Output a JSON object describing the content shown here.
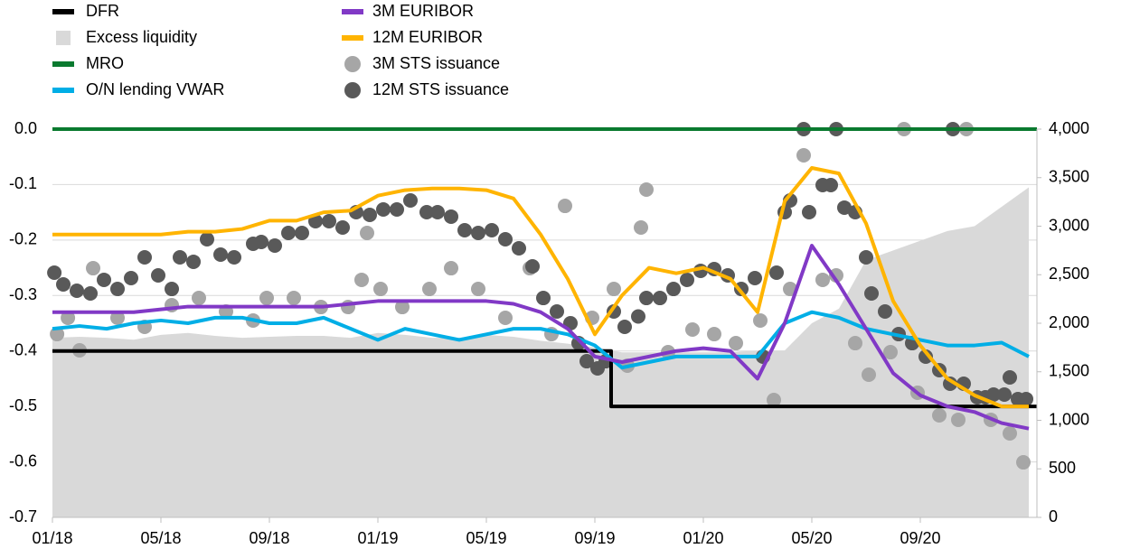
{
  "chart_data": {
    "type": "combo",
    "xlim": [
      0,
      36.3
    ],
    "xticks": [
      {
        "value": 0,
        "label": "01/18"
      },
      {
        "value": 4,
        "label": "05/18"
      },
      {
        "value": 8,
        "label": "09/18"
      },
      {
        "value": 12,
        "label": "01/19"
      },
      {
        "value": 16,
        "label": "05/19"
      },
      {
        "value": 20,
        "label": "09/19"
      },
      {
        "value": 24,
        "label": "01/20"
      },
      {
        "value": 28,
        "label": "05/20"
      },
      {
        "value": 32,
        "label": "09/20"
      }
    ],
    "ylim": [
      -0.7,
      0
    ],
    "yticks": [
      {
        "value": 0,
        "label": "0.0"
      },
      -0.1,
      -0.2,
      -0.3,
      -0.4,
      -0.5,
      -0.6,
      -0.7
    ],
    "y2lim": [
      0,
      4000
    ],
    "y2ticks": [
      {
        "value": 4000,
        "label": "4,000"
      },
      {
        "value": 3500,
        "label": "3,500"
      },
      {
        "value": 3000,
        "label": "3,000"
      },
      {
        "value": 2500,
        "label": "2,500"
      },
      {
        "value": 2000,
        "label": "2,000"
      },
      {
        "value": 1500,
        "label": "1,500"
      },
      {
        "value": 1000,
        "label": "1,000"
      },
      500,
      0
    ],
    "grid": true,
    "series": [
      {
        "name": "DFR",
        "type": "line",
        "color": "#000000",
        "x": [
          0,
          20.6,
          20.6,
          36.3
        ],
        "values": [
          -0.4,
          -0.4,
          -0.5,
          -0.5
        ]
      },
      {
        "name": "Excess liquidity",
        "type": "area",
        "axis": "y2",
        "color": "#d9d9d9",
        "x": [
          0,
          1,
          2,
          3,
          4,
          5,
          6,
          7,
          8,
          9,
          10,
          11,
          12,
          13,
          14,
          15,
          16,
          17,
          18,
          19,
          20,
          21,
          22,
          23,
          24,
          25,
          26,
          27,
          28,
          29,
          30,
          31,
          32,
          33,
          34,
          35,
          36
        ],
        "values": [
          1850,
          1860,
          1850,
          1830,
          1880,
          1900,
          1870,
          1850,
          1860,
          1870,
          1870,
          1850,
          1900,
          1880,
          1850,
          1850,
          1880,
          1860,
          1820,
          1790,
          1750,
          1700,
          1700,
          1700,
          1700,
          1700,
          1720,
          1720,
          2000,
          2150,
          2650,
          2750,
          2850,
          2950,
          3000,
          3200,
          3400
        ]
      },
      {
        "name": "MRO",
        "type": "line",
        "color": "#0a7a2f",
        "x": [
          0,
          36.3
        ],
        "values": [
          0,
          0
        ]
      },
      {
        "name": "O/N lending VWAR",
        "type": "line",
        "color": "#00aee6",
        "x": [
          0,
          1,
          2,
          3,
          4,
          5,
          6,
          7,
          8,
          9,
          10,
          11,
          12,
          13,
          14,
          15,
          16,
          17,
          18,
          19,
          20,
          21,
          22,
          23,
          24,
          25,
          26,
          27,
          28,
          29,
          30,
          31,
          32,
          33,
          34,
          35,
          36
        ],
        "values": [
          -0.36,
          -0.355,
          -0.36,
          -0.35,
          -0.345,
          -0.35,
          -0.34,
          -0.34,
          -0.35,
          -0.35,
          -0.34,
          -0.36,
          -0.38,
          -0.36,
          -0.37,
          -0.38,
          -0.37,
          -0.36,
          -0.36,
          -0.37,
          -0.39,
          -0.43,
          -0.42,
          -0.41,
          -0.41,
          -0.41,
          -0.41,
          -0.35,
          -0.33,
          -0.34,
          -0.36,
          -0.37,
          -0.38,
          -0.39,
          -0.39,
          -0.385,
          -0.41
        ]
      },
      {
        "name": "3M EURIBOR",
        "type": "line",
        "color": "#8139c6",
        "x": [
          0,
          1,
          2,
          3,
          4,
          5,
          6,
          7,
          8,
          9,
          10,
          11,
          12,
          13,
          14,
          15,
          16,
          17,
          18,
          19,
          20,
          21,
          22,
          23,
          24,
          25,
          26,
          27,
          28,
          29,
          30,
          31,
          32,
          33,
          34,
          35,
          36
        ],
        "values": [
          -0.33,
          -0.33,
          -0.33,
          -0.33,
          -0.325,
          -0.32,
          -0.32,
          -0.32,
          -0.32,
          -0.32,
          -0.32,
          -0.315,
          -0.31,
          -0.31,
          -0.31,
          -0.31,
          -0.31,
          -0.315,
          -0.33,
          -0.36,
          -0.41,
          -0.42,
          -0.41,
          -0.4,
          -0.395,
          -0.4,
          -0.45,
          -0.35,
          -0.21,
          -0.28,
          -0.36,
          -0.44,
          -0.48,
          -0.5,
          -0.51,
          -0.53,
          -0.54
        ]
      },
      {
        "name": "12M EURIBOR",
        "type": "line",
        "color": "#ffb400",
        "x": [
          0,
          1,
          2,
          3,
          4,
          5,
          6,
          7,
          8,
          9,
          10,
          11,
          12,
          13,
          14,
          15,
          16,
          17,
          18,
          19,
          20,
          21,
          22,
          23,
          24,
          25,
          26,
          27,
          28,
          29,
          30,
          31,
          32,
          33,
          34,
          35,
          36
        ],
        "values": [
          -0.19,
          -0.19,
          -0.19,
          -0.19,
          -0.19,
          -0.185,
          -0.185,
          -0.18,
          -0.165,
          -0.165,
          -0.15,
          -0.147,
          -0.12,
          -0.11,
          -0.107,
          -0.107,
          -0.11,
          -0.125,
          -0.19,
          -0.27,
          -0.37,
          -0.3,
          -0.25,
          -0.26,
          -0.25,
          -0.27,
          -0.33,
          -0.13,
          -0.07,
          -0.08,
          -0.17,
          -0.31,
          -0.39,
          -0.45,
          -0.48,
          -0.5,
          -0.5
        ]
      },
      {
        "name": "3M STS issuance",
        "type": "scatter",
        "axis": "y2",
        "color": "#a6a6a6",
        "x": [
          0.17,
          0.57,
          1.0,
          1.5,
          2.4,
          3.4,
          4.4,
          5.4,
          6.4,
          7.4,
          7.9,
          8.9,
          9.9,
          10.9,
          11.4,
          11.6,
          12.1,
          12.9,
          13.9,
          14.7,
          15.7,
          16.7,
          17.6,
          18.4,
          18.9,
          19.9,
          20.7,
          21.2,
          21.7,
          21.9,
          22.7,
          23.6,
          24.4,
          25.2,
          26.1,
          26.6,
          27.2,
          27.7,
          28.4,
          28.9,
          29.6,
          30.1,
          30.9,
          31.4,
          31.9,
          32.7,
          33.4,
          33.7,
          34.6,
          35.3,
          35.8
        ],
        "values": [
          1888,
          2056,
          1721,
          2567,
          2056,
          1963,
          2186,
          2260,
          2121,
          2028,
          2260,
          2260,
          2167,
          2167,
          2447,
          2930,
          2353,
          2167,
          2353,
          2567,
          2353,
          2056,
          2567,
          1888,
          3209,
          2056,
          2353,
          1563,
          2986,
          3377,
          1702,
          1935,
          1888,
          1795,
          2028,
          1209,
          2353,
          3730,
          2447,
          2493,
          1795,
          1470,
          1702,
          4000,
          1284,
          1051,
          1005,
          4000,
          1005,
          865,
          567
        ]
      },
      {
        "name": "12M STS issuance",
        "type": "scatter",
        "axis": "y2",
        "color": "#595959",
        "x": [
          0.07,
          0.4,
          0.9,
          1.4,
          1.9,
          2.4,
          2.9,
          3.4,
          3.9,
          4.4,
          4.7,
          5.2,
          5.7,
          6.2,
          6.7,
          7.4,
          7.7,
          8.2,
          8.7,
          9.2,
          9.7,
          10.2,
          10.7,
          11.2,
          11.7,
          12.2,
          12.7,
          13.2,
          13.8,
          14.2,
          14.7,
          15.2,
          15.7,
          16.2,
          16.7,
          17.2,
          17.7,
          18.1,
          18.6,
          19.1,
          19.4,
          19.7,
          20.1,
          20.4,
          20.7,
          21.1,
          21.6,
          21.9,
          22.4,
          22.9,
          23.4,
          23.9,
          24.4,
          24.9,
          25.4,
          25.9,
          26.2,
          26.7,
          27.0,
          27.2,
          27.7,
          27.9,
          28.4,
          28.7,
          28.9,
          29.2,
          29.6,
          30.0,
          30.2,
          30.7,
          31.2,
          31.7,
          32.2,
          32.7,
          33.1,
          33.2,
          33.6,
          34.1,
          34.4,
          34.7,
          35.1,
          35.3,
          35.6,
          35.9
        ],
        "values": [
          2521,
          2400,
          2335,
          2307,
          2447,
          2353,
          2465,
          2679,
          2493,
          2353,
          2679,
          2633,
          2865,
          2707,
          2679,
          2819,
          2837,
          2800,
          2930,
          2930,
          3051,
          3051,
          2986,
          3144,
          3116,
          3172,
          3172,
          3265,
          3144,
          3144,
          3098,
          2958,
          2930,
          2958,
          2865,
          2772,
          2586,
          2260,
          2121,
          2000,
          1795,
          1609,
          1535,
          1609,
          2121,
          1963,
          2070,
          2260,
          2260,
          2353,
          2447,
          2540,
          2558,
          2493,
          2353,
          2465,
          1656,
          2521,
          3144,
          3265,
          4000,
          3144,
          3423,
          3423,
          4000,
          3191,
          3144,
          2679,
          2307,
          2121,
          1888,
          1795,
          1656,
          1516,
          1377,
          4000,
          1377,
          1237,
          1237,
          1265,
          1265,
          1442,
          1219,
          1219
        ]
      }
    ]
  }
}
